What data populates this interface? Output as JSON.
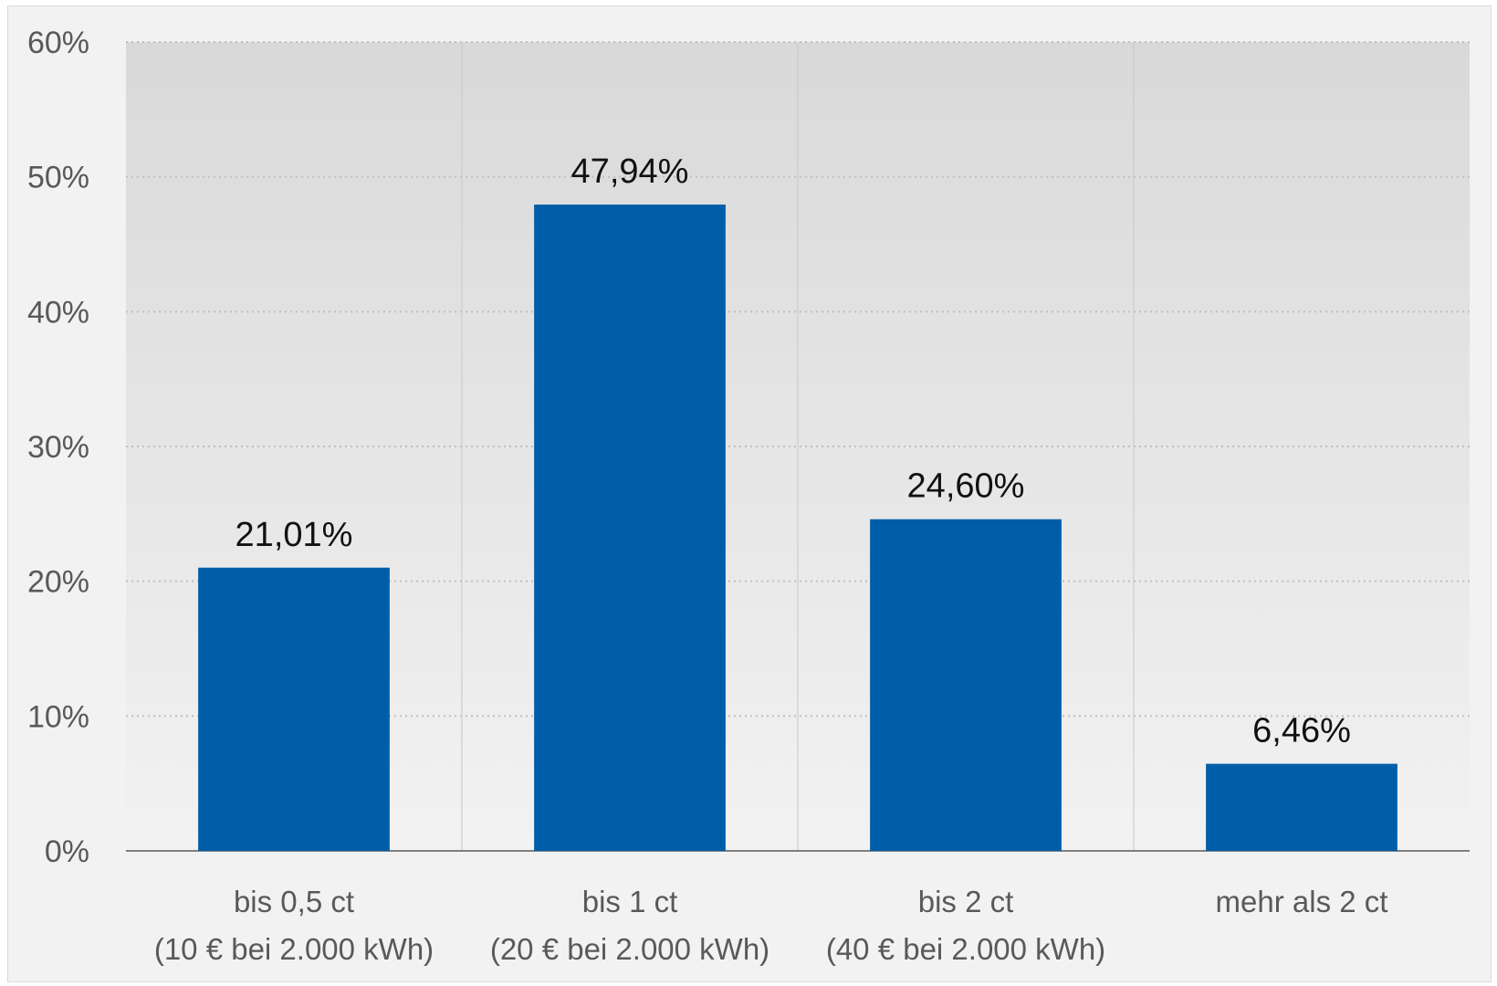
{
  "chart_data": {
    "type": "bar",
    "categories": [
      [
        "bis 0,5 ct",
        "(10 € bei 2.000 kWh)"
      ],
      [
        "bis 1  ct",
        "(20 € bei 2.000 kWh)"
      ],
      [
        "bis 2 ct",
        "(40 € bei 2.000 kWh)"
      ],
      [
        "mehr als 2 ct"
      ]
    ],
    "values": [
      21.01,
      47.94,
      24.6,
      6.46
    ],
    "value_labels": [
      "21,01%",
      "47,94%",
      "24,60%",
      "6,46%"
    ],
    "title": "",
    "xlabel": "",
    "ylabel": "",
    "ylim": [
      0,
      60
    ],
    "yticks": [
      0,
      10,
      20,
      30,
      40,
      50,
      60
    ],
    "ytick_labels": [
      "0%",
      "10%",
      "20%",
      "30%",
      "40%",
      "50%",
      "60%"
    ],
    "grid": true,
    "legend": "none",
    "colors": {
      "bar": "#005ea8",
      "plot_top": "#d9d9d9",
      "plot_bottom": "#f2f2f2",
      "gridline": "#bfbfbf",
      "axis": "#7f7f7f"
    }
  }
}
